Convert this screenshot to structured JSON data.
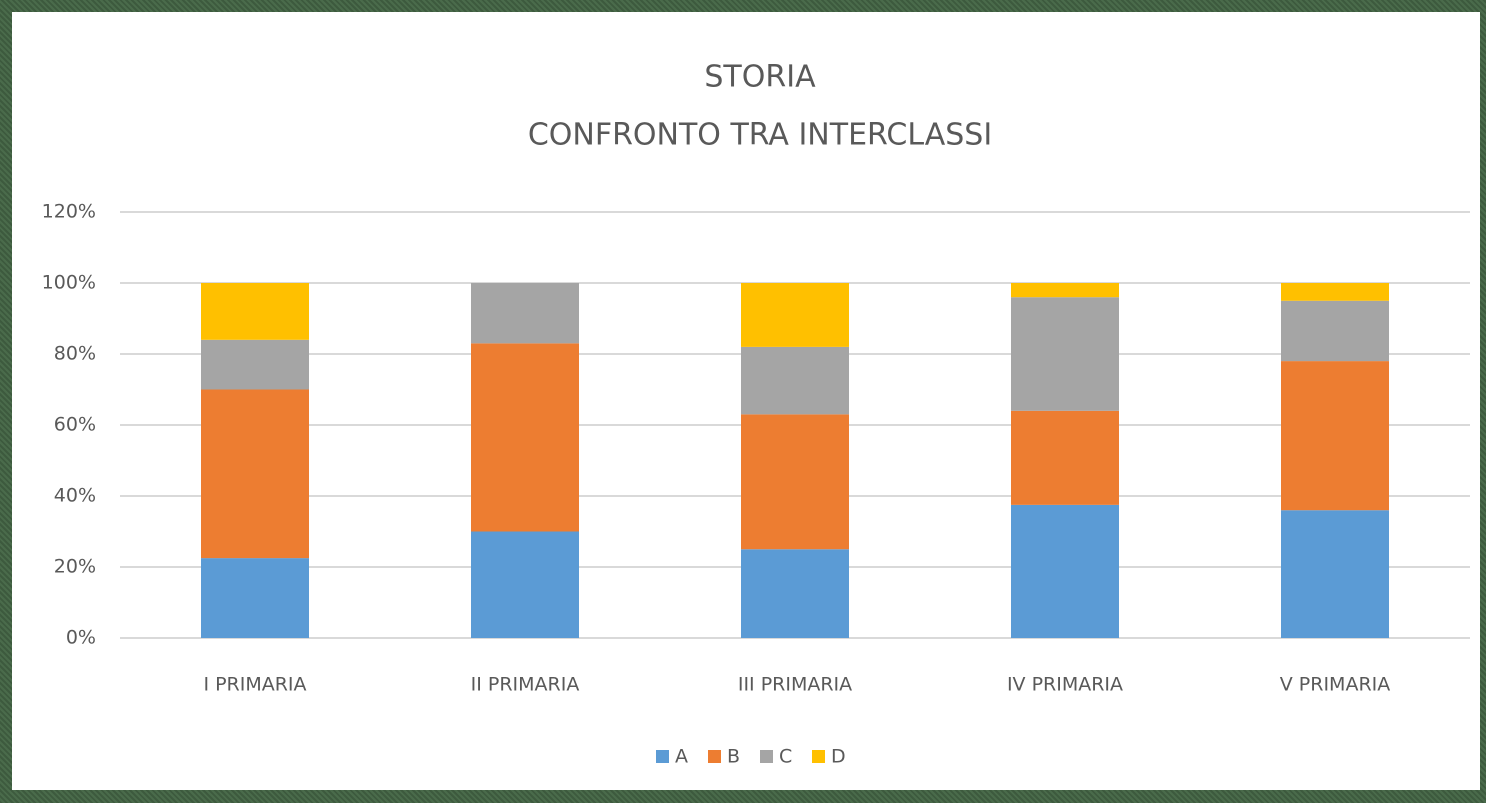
{
  "chart_data": {
    "type": "stacked_bar",
    "title": "STORIA",
    "subtitle": "CONFRONTO TRA INTERCLASSI",
    "categories": [
      "I PRIMARIA",
      "II PRIMARIA",
      "III PRIMARIA",
      "IV PRIMARIA",
      "V PRIMARIA"
    ],
    "series": [
      {
        "name": "A",
        "color": "#5b9bd5",
        "values": [
          22.5,
          30,
          25,
          37.5,
          36
        ]
      },
      {
        "name": "B",
        "color": "#ed7d31",
        "values": [
          47.5,
          53,
          38,
          26.5,
          42
        ]
      },
      {
        "name": "C",
        "color": "#a5a5a5",
        "values": [
          14,
          17,
          19,
          32,
          17
        ]
      },
      {
        "name": "D",
        "color": "#ffc000",
        "values": [
          16,
          0,
          18,
          4,
          5
        ]
      }
    ],
    "ylim": [
      0,
      120
    ],
    "yticks": [
      {
        "value": 0,
        "label": "0%"
      },
      {
        "value": 20,
        "label": "20%"
      },
      {
        "value": 40,
        "label": "40%"
      },
      {
        "value": 60,
        "label": "60%"
      },
      {
        "value": 80,
        "label": "80%"
      },
      {
        "value": 100,
        "label": "100%"
      },
      {
        "value": 120,
        "label": "120%"
      }
    ],
    "grid": true,
    "legend": "bottom"
  }
}
